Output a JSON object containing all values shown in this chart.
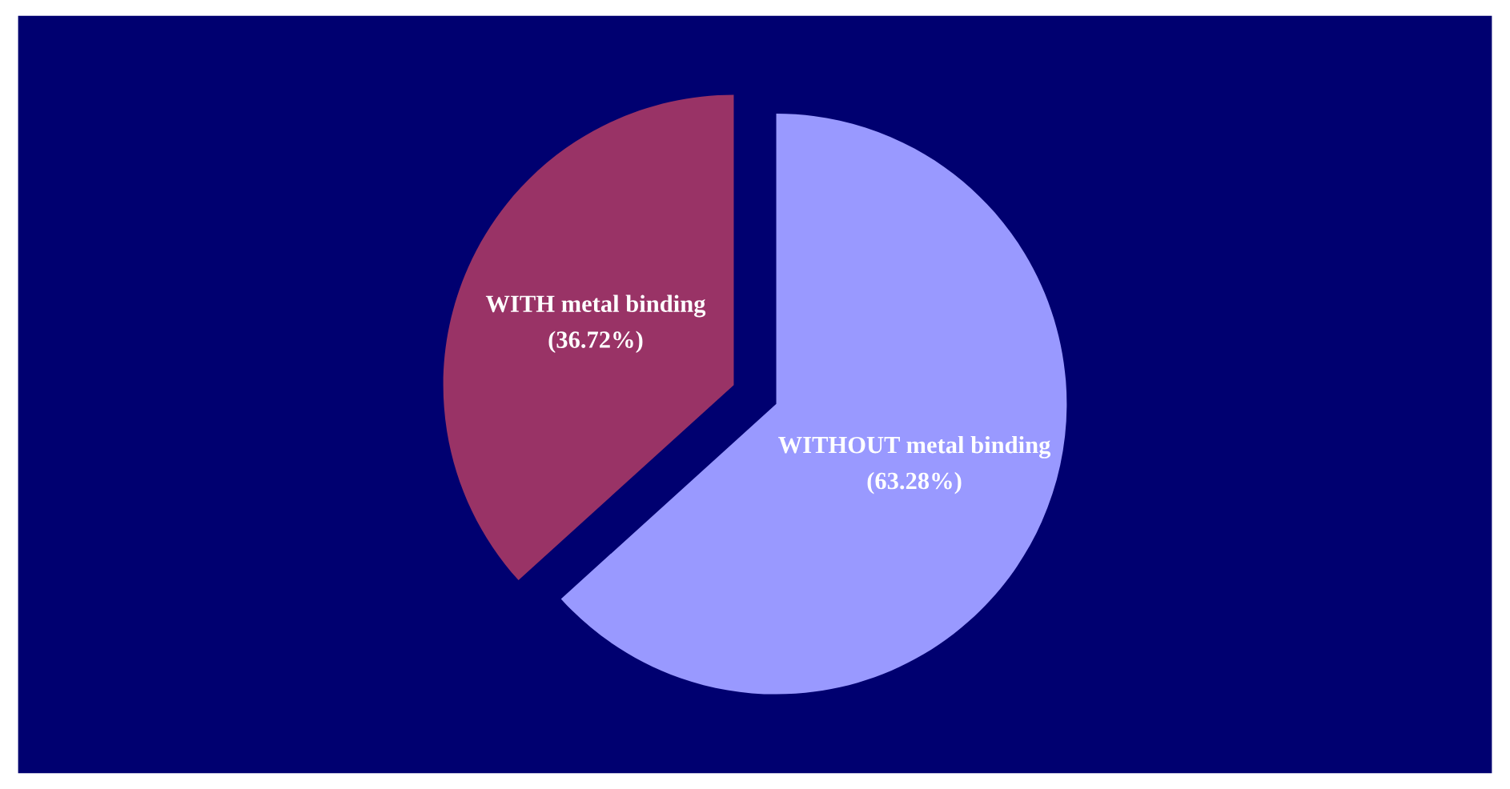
{
  "chart_data": {
    "type": "pie",
    "categories": [
      "WITH metal binding",
      "WITHOUT metal binding"
    ],
    "values": [
      36.72,
      63.28
    ],
    "colors": [
      "#993366",
      "#9999ff"
    ],
    "value_labels": [
      "(36.72%)",
      "(63.28%)"
    ]
  }
}
